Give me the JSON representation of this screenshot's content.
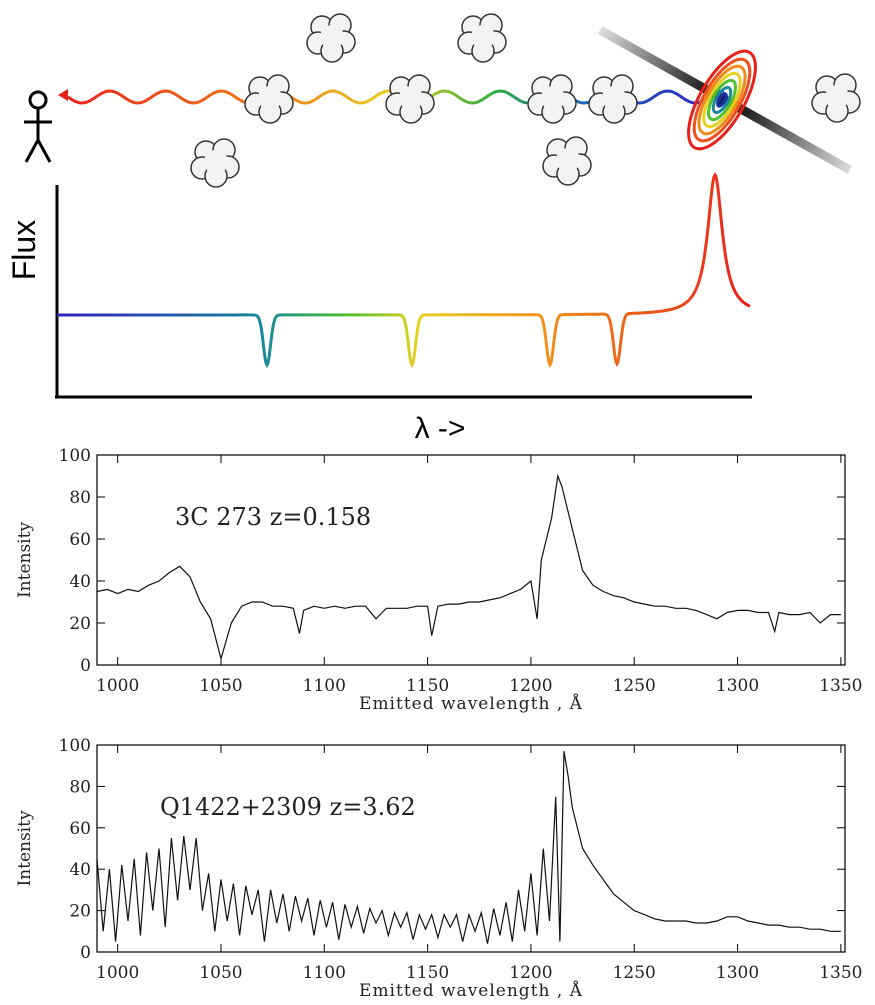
{
  "diagram": {
    "y_label": "Flux",
    "x_label": "λ ->"
  },
  "chart_data": [
    {
      "type": "line",
      "annotation": "3C 273 z=0.158",
      "x_label": "Emitted wavelength , Å",
      "y_label": "Intensity",
      "xlim": [
        990,
        1352
      ],
      "ylim": [
        0,
        100
      ],
      "xticks": [
        1000,
        1050,
        1100,
        1150,
        1200,
        1250,
        1300,
        1350
      ],
      "yticks": [
        0,
        20,
        40,
        60,
        80,
        100
      ],
      "color": "#111111",
      "x": [
        990,
        995,
        1000,
        1005,
        1010,
        1015,
        1020,
        1025,
        1030,
        1035,
        1040,
        1045,
        1050,
        1055,
        1060,
        1065,
        1070,
        1075,
        1080,
        1085,
        1088,
        1090,
        1095,
        1100,
        1105,
        1110,
        1115,
        1120,
        1125,
        1130,
        1135,
        1140,
        1145,
        1150,
        1152,
        1155,
        1160,
        1165,
        1170,
        1175,
        1180,
        1185,
        1190,
        1195,
        1200,
        1203,
        1205,
        1210,
        1213,
        1215,
        1220,
        1225,
        1230,
        1235,
        1240,
        1245,
        1250,
        1255,
        1260,
        1265,
        1270,
        1275,
        1280,
        1285,
        1290,
        1295,
        1300,
        1305,
        1310,
        1315,
        1318,
        1320,
        1325,
        1330,
        1335,
        1340,
        1345,
        1350
      ],
      "values": [
        35,
        36,
        34,
        36,
        35,
        38,
        40,
        44,
        47,
        42,
        30,
        22,
        3,
        20,
        28,
        30,
        30,
        28,
        28,
        27,
        15,
        26,
        28,
        27,
        28,
        27,
        28,
        28,
        22,
        27,
        27,
        27,
        28,
        28,
        14,
        28,
        29,
        29,
        30,
        30,
        31,
        32,
        34,
        36,
        40,
        22,
        50,
        70,
        90,
        85,
        65,
        45,
        38,
        35,
        33,
        32,
        30,
        29,
        28,
        28,
        27,
        27,
        26,
        24,
        22,
        25,
        26,
        26,
        25,
        25,
        16,
        25,
        24,
        24,
        25,
        20,
        24,
        24
      ]
    },
    {
      "type": "line",
      "annotation": "Q1422+2309 z=3.62",
      "x_label": "Emitted wavelength , Å",
      "y_label": "Intensity",
      "xlim": [
        990,
        1352
      ],
      "ylim": [
        0,
        100
      ],
      "xticks": [
        1000,
        1050,
        1100,
        1150,
        1200,
        1250,
        1300,
        1350
      ],
      "yticks": [
        0,
        20,
        40,
        60,
        80,
        100
      ],
      "color": "#111111",
      "x": [
        990,
        993,
        996,
        999,
        1002,
        1005,
        1008,
        1011,
        1014,
        1017,
        1020,
        1023,
        1026,
        1029,
        1032,
        1035,
        1038,
        1041,
        1044,
        1047,
        1050,
        1053,
        1056,
        1059,
        1062,
        1065,
        1068,
        1071,
        1074,
        1077,
        1080,
        1083,
        1086,
        1089,
        1092,
        1095,
        1098,
        1101,
        1104,
        1107,
        1110,
        1113,
        1116,
        1119,
        1122,
        1125,
        1128,
        1131,
        1134,
        1137,
        1140,
        1143,
        1146,
        1149,
        1152,
        1155,
        1158,
        1161,
        1164,
        1167,
        1170,
        1173,
        1176,
        1179,
        1182,
        1185,
        1188,
        1191,
        1194,
        1197,
        1200,
        1203,
        1206,
        1209,
        1212,
        1214,
        1216,
        1218,
        1220,
        1225,
        1230,
        1235,
        1240,
        1245,
        1250,
        1255,
        1260,
        1265,
        1270,
        1275,
        1280,
        1285,
        1290,
        1295,
        1300,
        1305,
        1310,
        1315,
        1320,
        1325,
        1330,
        1335,
        1340,
        1345,
        1350
      ],
      "values": [
        45,
        10,
        40,
        5,
        42,
        15,
        45,
        8,
        48,
        20,
        50,
        12,
        55,
        25,
        56,
        30,
        55,
        20,
        38,
        10,
        35,
        15,
        33,
        8,
        32,
        18,
        30,
        5,
        30,
        14,
        28,
        10,
        27,
        15,
        26,
        8,
        25,
        12,
        24,
        6,
        23,
        12,
        22,
        9,
        21,
        14,
        20,
        8,
        19,
        12,
        19,
        6,
        18,
        11,
        18,
        7,
        18,
        12,
        18,
        5,
        18,
        10,
        19,
        4,
        21,
        8,
        24,
        5,
        30,
        10,
        38,
        8,
        50,
        15,
        75,
        5,
        97,
        85,
        70,
        50,
        42,
        35,
        28,
        24,
        20,
        18,
        16,
        15,
        15,
        15,
        14,
        14,
        15,
        17,
        17,
        15,
        14,
        13,
        13,
        12,
        12,
        11,
        11,
        10,
        10
      ]
    }
  ]
}
